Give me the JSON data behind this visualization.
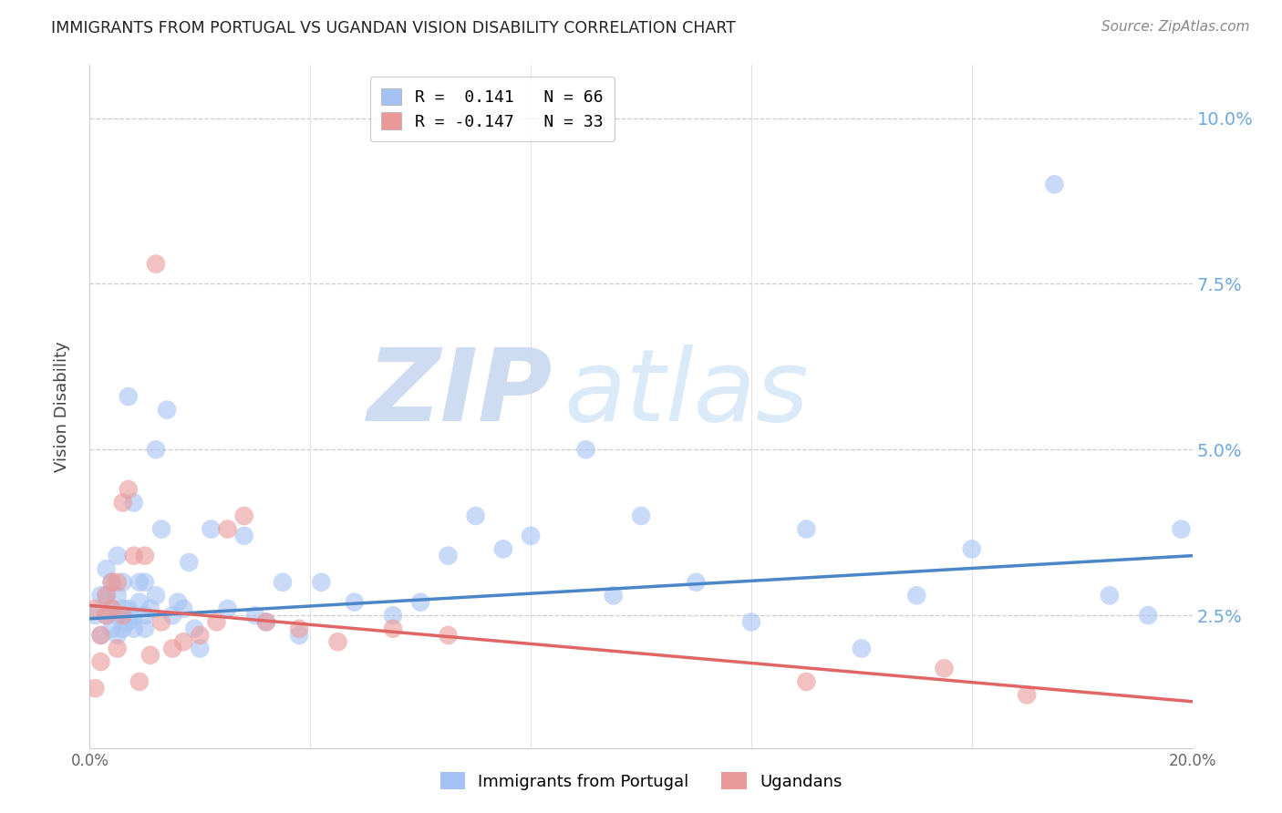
{
  "title": "IMMIGRANTS FROM PORTUGAL VS UGANDAN VISION DISABILITY CORRELATION CHART",
  "source": "Source: ZipAtlas.com",
  "ylabel": "Vision Disability",
  "ytick_labels": [
    "2.5%",
    "5.0%",
    "7.5%",
    "10.0%"
  ],
  "ytick_values": [
    0.025,
    0.05,
    0.075,
    0.1
  ],
  "xlim": [
    0.0,
    0.2
  ],
  "ylim": [
    0.005,
    0.108
  ],
  "blue_color": "#a4c2f4",
  "pink_color": "#ea9999",
  "blue_line_color": "#4a86c8",
  "pink_line_color": "#e06666",
  "ytick_color": "#6fa8dc",
  "watermark_zip": "ZIP",
  "watermark_atlas": "atlas",
  "blue_points_x": [
    0.001,
    0.002,
    0.002,
    0.003,
    0.003,
    0.003,
    0.004,
    0.004,
    0.004,
    0.005,
    0.005,
    0.005,
    0.005,
    0.006,
    0.006,
    0.006,
    0.007,
    0.007,
    0.007,
    0.008,
    0.008,
    0.008,
    0.009,
    0.009,
    0.01,
    0.01,
    0.01,
    0.011,
    0.012,
    0.012,
    0.013,
    0.014,
    0.015,
    0.016,
    0.017,
    0.018,
    0.019,
    0.02,
    0.022,
    0.025,
    0.028,
    0.03,
    0.032,
    0.035,
    0.038,
    0.042,
    0.048,
    0.055,
    0.06,
    0.065,
    0.07,
    0.075,
    0.08,
    0.09,
    0.095,
    0.1,
    0.11,
    0.12,
    0.13,
    0.14,
    0.15,
    0.16,
    0.175,
    0.185,
    0.192,
    0.198
  ],
  "blue_points_y": [
    0.025,
    0.028,
    0.022,
    0.032,
    0.028,
    0.025,
    0.03,
    0.026,
    0.023,
    0.028,
    0.025,
    0.022,
    0.034,
    0.03,
    0.026,
    0.023,
    0.058,
    0.026,
    0.024,
    0.042,
    0.025,
    0.023,
    0.027,
    0.03,
    0.025,
    0.023,
    0.03,
    0.026,
    0.05,
    0.028,
    0.038,
    0.056,
    0.025,
    0.027,
    0.026,
    0.033,
    0.023,
    0.02,
    0.038,
    0.026,
    0.037,
    0.025,
    0.024,
    0.03,
    0.022,
    0.03,
    0.027,
    0.025,
    0.027,
    0.034,
    0.04,
    0.035,
    0.037,
    0.05,
    0.028,
    0.04,
    0.03,
    0.024,
    0.038,
    0.02,
    0.028,
    0.035,
    0.09,
    0.028,
    0.025,
    0.038
  ],
  "pink_points_x": [
    0.001,
    0.001,
    0.002,
    0.002,
    0.003,
    0.003,
    0.004,
    0.004,
    0.005,
    0.005,
    0.006,
    0.006,
    0.007,
    0.008,
    0.009,
    0.01,
    0.011,
    0.012,
    0.013,
    0.015,
    0.017,
    0.02,
    0.023,
    0.025,
    0.028,
    0.032,
    0.038,
    0.045,
    0.055,
    0.065,
    0.13,
    0.155,
    0.17
  ],
  "pink_points_y": [
    0.026,
    0.014,
    0.022,
    0.018,
    0.028,
    0.025,
    0.03,
    0.026,
    0.02,
    0.03,
    0.025,
    0.042,
    0.044,
    0.034,
    0.015,
    0.034,
    0.019,
    0.078,
    0.024,
    0.02,
    0.021,
    0.022,
    0.024,
    0.038,
    0.04,
    0.024,
    0.023,
    0.021,
    0.023,
    0.022,
    0.015,
    0.017,
    0.013
  ],
  "blue_trend_y_start": 0.0245,
  "blue_trend_y_end": 0.034,
  "pink_trend_y_start": 0.0265,
  "pink_trend_y_end": 0.012,
  "legend_labels": [
    "R =  0.141   N = 66",
    "R = -0.147   N = 33"
  ],
  "bottom_legend_labels": [
    "Immigrants from Portugal",
    "Ugandans"
  ]
}
